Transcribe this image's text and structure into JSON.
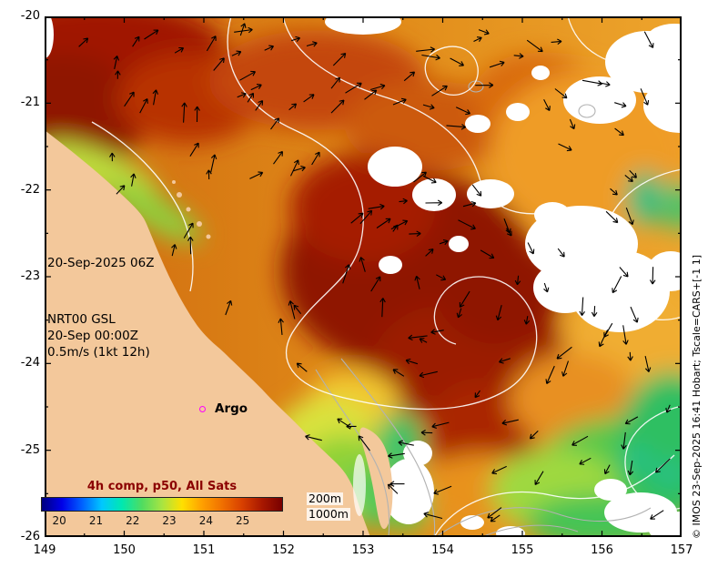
{
  "palette": {
    "land": "#f3c89b",
    "ocean_base_left": "#cf6a10",
    "ocean_base_right": "#eda42c",
    "argo_marker": "#ff00ff",
    "colorbar_title_color": "#8b0000",
    "ssh_contour": "#ffffff",
    "bathy_contour": "#b2b2b2",
    "arrow_color": "#000000"
  },
  "axes": {
    "lat_ticks": [
      "-20",
      "-21",
      "-22",
      "-23",
      "-24",
      "-25",
      "-26"
    ],
    "lon_ticks": [
      "149",
      "150",
      "151",
      "152",
      "153",
      "154",
      "155",
      "156",
      "157"
    ]
  },
  "annotations": {
    "datetime": "20-Sep-2025 06Z",
    "model_line1": "NRT00 GSL",
    "model_line2": "20-Sep 00:00Z",
    "model_line3": "0.5m/s (1kt 12h)",
    "argo_label": "Argo",
    "depth_200": "200m",
    "depth_1000": "1000m",
    "copyright": "© IMOS 23-Sep-2025 16:41 Hobart; Tscale=CARS+[-1 1]"
  },
  "colorbar": {
    "title": "4h comp, p50, All Sats",
    "ticks": [
      "20",
      "21",
      "22",
      "23",
      "24",
      "25"
    ],
    "min": 19.5,
    "max": 26.1,
    "gradient": [
      "#00007f",
      "#0000e8",
      "#0060ff",
      "#00c8ff",
      "#00e8b0",
      "#50dc60",
      "#a8e442",
      "#ffe000",
      "#ffa000",
      "#f07000",
      "#d84000",
      "#a81800",
      "#780000"
    ]
  }
}
